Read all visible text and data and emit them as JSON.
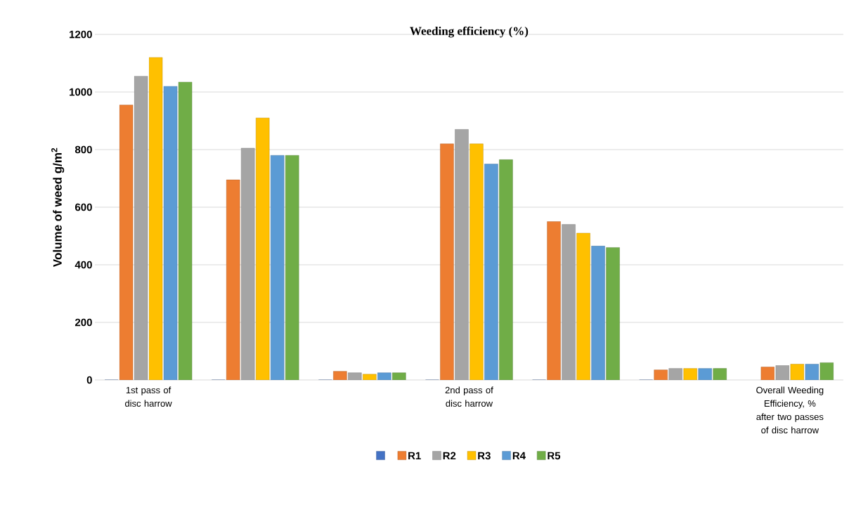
{
  "chart_data": {
    "type": "bar",
    "title": "Weeding efficiency (%)",
    "ylabel": "Volume of weed g/m$^{2}$",
    "categories": [
      "1st pass of disc harrow",
      null,
      null,
      "2nd pass of disc harrow",
      null,
      null,
      "Overall Weeding Efficiency, % after two passes of disc harrow"
    ],
    "series": [
      {
        "color": "#4472c4",
        "values": [
          0,
          0,
          0,
          0,
          0,
          0,
          null
        ]
      },
      {
        "name": "R1",
        "color": "#ed7d31",
        "values": [
          955,
          695,
          30,
          820,
          550,
          35,
          45
        ]
      },
      {
        "name": "R2",
        "color": "#a5a5a5",
        "values": [
          1055,
          805,
          25,
          870,
          540,
          40,
          50
        ]
      },
      {
        "name": "R3",
        "color": "#ffc000",
        "values": [
          1120,
          910,
          20,
          820,
          510,
          40,
          55
        ]
      },
      {
        "name": "R4",
        "color": "#5b9bd5",
        "values": [
          1020,
          780,
          25,
          750,
          465,
          40,
          55
        ]
      },
      {
        "name": "R5",
        "color": "#70ad47",
        "values": [
          1035,
          780,
          25,
          765,
          460,
          40,
          60
        ]
      }
    ],
    "ylim": [
      0,
      1200
    ],
    "yticks": [
      0,
      200,
      400,
      600,
      800,
      1000,
      1200
    ],
    "grid": "y",
    "legend": "bottom"
  }
}
